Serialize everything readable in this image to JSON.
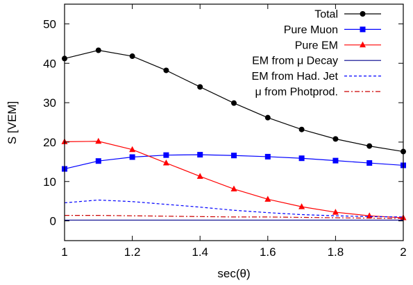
{
  "chart_data": {
    "type": "line",
    "xlabel": "sec(θ)",
    "ylabel": "S [VEM]",
    "xlim": [
      1,
      2
    ],
    "ylim": [
      -5,
      55
    ],
    "xticks": [
      1,
      1.2,
      1.4,
      1.6,
      1.8,
      2
    ],
    "xtick_labels": [
      "1",
      "1.2",
      "1.4",
      "1.6",
      "1.8",
      "2"
    ],
    "yticks": [
      0,
      10,
      20,
      30,
      40,
      50
    ],
    "ytick_labels": [
      "0",
      "10",
      "20",
      "30",
      "40",
      "50"
    ],
    "grid": false,
    "legend_position": "top-right",
    "x": [
      1,
      1.1,
      1.2,
      1.3,
      1.4,
      1.5,
      1.6,
      1.7,
      1.8,
      1.9,
      2
    ],
    "series": [
      {
        "name": "Total",
        "color": "#000000",
        "style": "solid",
        "marker": "circle",
        "values": [
          41.2,
          43.3,
          41.8,
          38.2,
          34.0,
          29.9,
          26.2,
          23.2,
          20.8,
          19.0,
          17.6
        ]
      },
      {
        "name": "Pure Muon",
        "color": "#0000ff",
        "style": "solid",
        "marker": "square",
        "values": [
          13.2,
          15.2,
          16.2,
          16.7,
          16.8,
          16.6,
          16.3,
          15.9,
          15.3,
          14.7,
          14.1
        ]
      },
      {
        "name": "Pure EM",
        "color": "#ff0000",
        "style": "solid",
        "marker": "triangle",
        "values": [
          20.1,
          20.2,
          18.1,
          14.7,
          11.3,
          8.1,
          5.5,
          3.6,
          2.2,
          1.3,
          0.8
        ]
      },
      {
        "name": "EM from μ Decay",
        "color": "#00008b",
        "style": "solid",
        "marker": "none",
        "values": [
          0.2,
          0.2,
          0.2,
          0.2,
          0.2,
          0.2,
          0.2,
          0.2,
          0.2,
          0.2,
          0.2
        ]
      },
      {
        "name": "EM from Had. Jet",
        "color": "#0000ff",
        "style": "dashed",
        "marker": "none",
        "values": [
          4.6,
          5.3,
          4.9,
          4.2,
          3.5,
          2.7,
          2.1,
          1.6,
          1.3,
          1.1,
          1.0
        ]
      },
      {
        "name": "μ from Photprod.",
        "color": "#cc0000",
        "style": "dashdot",
        "marker": "none",
        "values": [
          1.4,
          1.4,
          1.3,
          1.2,
          1.1,
          1.0,
          1.0,
          0.9,
          0.8,
          0.7,
          0.6
        ]
      }
    ]
  }
}
